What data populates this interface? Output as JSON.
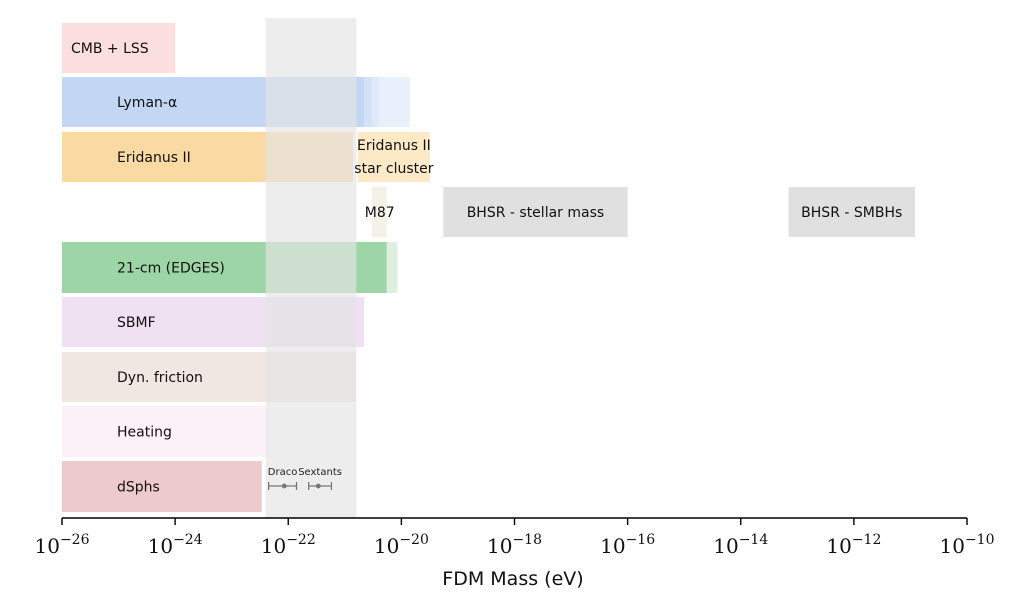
{
  "chart_data": {
    "type": "bar",
    "orientation": "horizontal",
    "x_scale": "log",
    "xlabel": "FDM Mass (eV)",
    "xlim": [
      1e-26,
      1e-10
    ],
    "x_ticks": [
      {
        "base": "10",
        "exp": "−26"
      },
      {
        "base": "10",
        "exp": "−24"
      },
      {
        "base": "10",
        "exp": "−22"
      },
      {
        "base": "10",
        "exp": "−20"
      },
      {
        "base": "10",
        "exp": "−18"
      },
      {
        "base": "10",
        "exp": "−16"
      },
      {
        "base": "10",
        "exp": "−14"
      },
      {
        "base": "10",
        "exp": "−12"
      },
      {
        "base": "10",
        "exp": "−10"
      }
    ],
    "highlight_band": {
      "x_from": 4e-23,
      "x_to": 1.6e-21,
      "color": "#e5e5e5"
    },
    "rows": [
      {
        "label": "CMB + LSS",
        "color": "#fddede",
        "label_inside": "left",
        "segments": [
          {
            "from": 1e-26,
            "to": 1e-24,
            "opacity": 1
          }
        ]
      },
      {
        "label": "Lyman-α",
        "color": "#c3d7f5",
        "label_inside": "indented",
        "segments": [
          {
            "from": 1e-26,
            "to": 2.2e-21,
            "opacity": 1
          },
          {
            "from": 2.2e-21,
            "to": 3e-21,
            "opacity": 0.75
          },
          {
            "from": 3e-21,
            "to": 4e-21,
            "opacity": 0.55
          },
          {
            "from": 4e-21,
            "to": 1.4e-20,
            "opacity": 0.38
          }
        ]
      },
      {
        "label": "Eridanus II",
        "color": "#fad9a2",
        "label_inside": "indented",
        "segments": [
          {
            "from": 1e-26,
            "to": 1.4e-21,
            "opacity": 1
          }
        ]
      },
      {
        "label": "Eridanus II",
        "label2": "star cluster",
        "color": "#fde9c6",
        "segments": [
          {
            "from": 1.7e-21,
            "to": 3.2e-20,
            "opacity": 1
          }
        ]
      },
      {
        "label": "M87",
        "color": "#f4f1e6",
        "label_side": "left",
        "segments": [
          {
            "from": 3e-21,
            "to": 5.5e-21,
            "opacity": 1
          }
        ]
      },
      {
        "label": "BHSR - stellar mass",
        "color": "#e0e0e0",
        "segments": [
          {
            "from": 5.5e-20,
            "to": 1e-16,
            "opacity": 1
          }
        ]
      },
      {
        "label": "BHSR - SMBHs",
        "color": "#e0e0e0",
        "segments": [
          {
            "from": 7e-14,
            "to": 1.2e-11,
            "opacity": 1
          }
        ]
      },
      {
        "label": "21-cm (EDGES)",
        "color": "#9dd5a6",
        "label_inside": "indented",
        "segments": [
          {
            "from": 1e-26,
            "to": 5.5e-21,
            "opacity": 1
          },
          {
            "from": 5.5e-21,
            "to": 8.5e-21,
            "opacity": 0.35
          }
        ]
      },
      {
        "label": "SBMF",
        "color": "#f0e1f2",
        "label_inside": "indented",
        "segments": [
          {
            "from": 1e-26,
            "to": 2.2e-21,
            "opacity": 1
          }
        ]
      },
      {
        "label": "Dyn. friction",
        "color": "#f0e7e3",
        "label_inside": "indented",
        "segments": [
          {
            "from": 1e-26,
            "to": 1.6e-21,
            "opacity": 1
          }
        ]
      },
      {
        "label": "Heating",
        "color": "#fdf1f9",
        "label_inside": "indented",
        "segments": [
          {
            "from": 1e-26,
            "to": 4e-23,
            "opacity": 1
          }
        ]
      },
      {
        "label": "dSphs",
        "color": "#edcacc",
        "label_inside": "indented",
        "segments": [
          {
            "from": 1e-26,
            "to": 3.4e-23,
            "opacity": 1
          }
        ]
      }
    ],
    "error_points": [
      {
        "label": "Draco",
        "x": 8.5e-23,
        "xmin": 4.5e-23,
        "xmax": 1.4e-22
      },
      {
        "label": "Sextants",
        "x": 3.4e-22,
        "xmin": 2.3e-22,
        "xmax": 5.8e-22
      }
    ]
  }
}
